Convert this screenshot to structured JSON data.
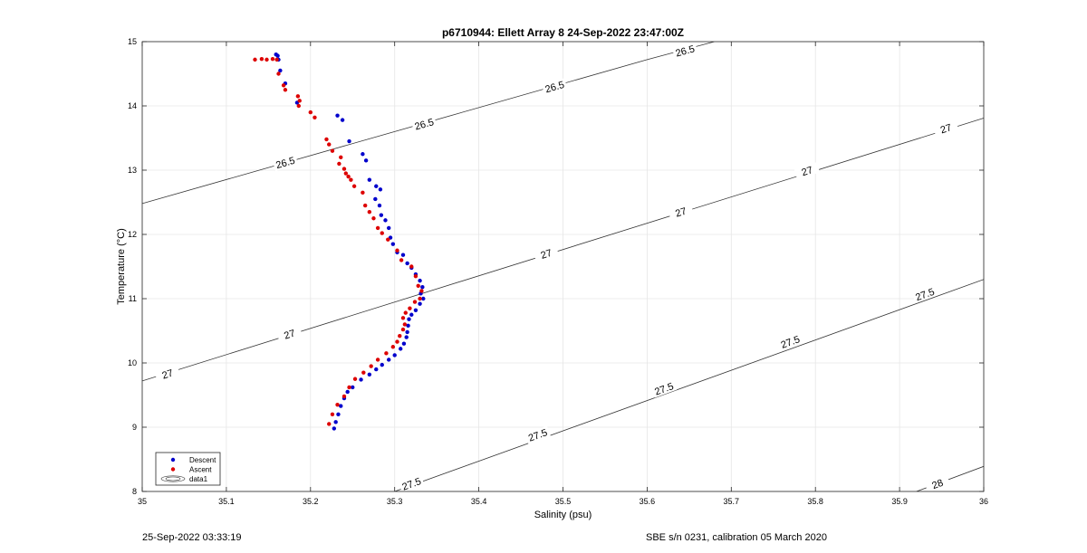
{
  "footer": {
    "left": "25-Sep-2022 03:33:19",
    "right": "SBE s/n 0231, calibration 05 March 2020"
  },
  "chart_data": {
    "type": "scatter",
    "title": "p6710944: Ellett Array 8 24-Sep-2022 23:47:00Z",
    "xlabel": "Salinity (psu)",
    "ylabel": "Temperature (°C)",
    "xlim": [
      35,
      36
    ],
    "ylim": [
      8,
      15
    ],
    "xticks": [
      "35",
      "35.1",
      "35.2",
      "35.3",
      "35.4",
      "35.5",
      "35.6",
      "35.7",
      "35.8",
      "35.9",
      "36"
    ],
    "yticks": [
      "8",
      "9",
      "10",
      "11",
      "12",
      "13",
      "14",
      "15"
    ],
    "grid": true,
    "legend": {
      "placement": "bottom-left",
      "entries": [
        "Descent",
        "Ascent",
        "data1"
      ]
    },
    "series": [
      {
        "name": "Descent",
        "color": "#0000cc",
        "points": [
          [
            35.159,
            14.8
          ],
          [
            35.161,
            14.78
          ],
          [
            35.162,
            14.72
          ],
          [
            35.164,
            14.55
          ],
          [
            35.17,
            14.35
          ],
          [
            35.184,
            14.05
          ],
          [
            35.232,
            13.85
          ],
          [
            35.238,
            13.78
          ],
          [
            35.246,
            13.45
          ],
          [
            35.262,
            13.25
          ],
          [
            35.266,
            13.15
          ],
          [
            35.27,
            12.85
          ],
          [
            35.278,
            12.75
          ],
          [
            35.283,
            12.7
          ],
          [
            35.277,
            12.55
          ],
          [
            35.282,
            12.45
          ],
          [
            35.284,
            12.3
          ],
          [
            35.289,
            12.22
          ],
          [
            35.293,
            12.1
          ],
          [
            35.295,
            11.95
          ],
          [
            35.298,
            11.85
          ],
          [
            35.303,
            11.72
          ],
          [
            35.31,
            11.68
          ],
          [
            35.315,
            11.55
          ],
          [
            35.32,
            11.48
          ],
          [
            35.325,
            11.38
          ],
          [
            35.33,
            11.28
          ],
          [
            35.333,
            11.18
          ],
          [
            35.331,
            11.08
          ],
          [
            35.334,
            11.0
          ],
          [
            35.33,
            10.92
          ],
          [
            35.325,
            10.82
          ],
          [
            35.32,
            10.75
          ],
          [
            35.317,
            10.68
          ],
          [
            35.316,
            10.58
          ],
          [
            35.315,
            10.48
          ],
          [
            35.314,
            10.4
          ],
          [
            35.311,
            10.3
          ],
          [
            35.307,
            10.22
          ],
          [
            35.3,
            10.12
          ],
          [
            35.293,
            10.05
          ],
          [
            35.285,
            9.97
          ],
          [
            35.278,
            9.9
          ],
          [
            35.27,
            9.82
          ],
          [
            35.26,
            9.74
          ],
          [
            35.25,
            9.62
          ],
          [
            35.244,
            9.55
          ],
          [
            35.24,
            9.45
          ],
          [
            35.236,
            9.33
          ],
          [
            35.233,
            9.2
          ],
          [
            35.23,
            9.08
          ],
          [
            35.228,
            8.98
          ]
        ]
      },
      {
        "name": "Ascent",
        "color": "#dd0000",
        "points": [
          [
            35.134,
            14.72
          ],
          [
            35.142,
            14.73
          ],
          [
            35.148,
            14.72
          ],
          [
            35.155,
            14.73
          ],
          [
            35.16,
            14.72
          ],
          [
            35.162,
            14.5
          ],
          [
            35.168,
            14.32
          ],
          [
            35.17,
            14.25
          ],
          [
            35.185,
            14.15
          ],
          [
            35.187,
            14.08
          ],
          [
            35.186,
            14.0
          ],
          [
            35.2,
            13.9
          ],
          [
            35.205,
            13.82
          ],
          [
            35.219,
            13.48
          ],
          [
            35.222,
            13.4
          ],
          [
            35.226,
            13.3
          ],
          [
            35.236,
            13.2
          ],
          [
            35.234,
            13.1
          ],
          [
            35.24,
            13.02
          ],
          [
            35.242,
            12.95
          ],
          [
            35.245,
            12.9
          ],
          [
            35.248,
            12.85
          ],
          [
            35.252,
            12.75
          ],
          [
            35.262,
            12.65
          ],
          [
            35.265,
            12.45
          ],
          [
            35.27,
            12.35
          ],
          [
            35.275,
            12.25
          ],
          [
            35.28,
            12.1
          ],
          [
            35.285,
            12.02
          ],
          [
            35.292,
            11.92
          ],
          [
            35.303,
            11.75
          ],
          [
            35.308,
            11.6
          ],
          [
            35.32,
            11.5
          ],
          [
            35.325,
            11.35
          ],
          [
            35.328,
            11.2
          ],
          [
            35.332,
            11.12
          ],
          [
            35.33,
            11.0
          ],
          [
            35.324,
            10.95
          ],
          [
            35.318,
            10.85
          ],
          [
            35.313,
            10.78
          ],
          [
            35.31,
            10.7
          ],
          [
            35.312,
            10.6
          ],
          [
            35.31,
            10.52
          ],
          [
            35.306,
            10.42
          ],
          [
            35.303,
            10.33
          ],
          [
            35.298,
            10.25
          ],
          [
            35.29,
            10.15
          ],
          [
            35.28,
            10.05
          ],
          [
            35.272,
            9.95
          ],
          [
            35.263,
            9.85
          ],
          [
            35.253,
            9.75
          ],
          [
            35.246,
            9.62
          ],
          [
            35.24,
            9.48
          ],
          [
            35.232,
            9.35
          ],
          [
            35.226,
            9.2
          ],
          [
            35.222,
            9.05
          ]
        ]
      }
    ],
    "isopycnals": [
      {
        "label": "26.5",
        "points": [
          [
            35.0,
            12.48
          ],
          [
            35.6,
            14.72
          ],
          [
            35.68,
            15.0
          ]
        ],
        "labels_at": [
          [
            35.17,
            13.12
          ],
          [
            35.335,
            13.72
          ],
          [
            35.49,
            14.3
          ],
          [
            35.645,
            14.86
          ]
        ]
      },
      {
        "label": "27",
        "points": [
          [
            35.0,
            9.72
          ],
          [
            36.0,
            13.81
          ]
        ],
        "labels_at": [
          [
            35.03,
            9.83
          ],
          [
            35.175,
            10.45
          ],
          [
            35.48,
            11.7
          ],
          [
            35.64,
            12.35
          ],
          [
            35.79,
            12.99
          ],
          [
            35.955,
            13.65
          ]
        ]
      },
      {
        "label": "27.5",
        "points": [
          [
            35.3,
            8.0
          ],
          [
            36.0,
            11.3
          ]
        ],
        "labels_at": [
          [
            35.32,
            8.12
          ],
          [
            35.47,
            8.88
          ],
          [
            35.62,
            9.6
          ],
          [
            35.77,
            10.33
          ],
          [
            35.93,
            11.07
          ]
        ]
      },
      {
        "label": "28",
        "points": [
          [
            35.92,
            8.0
          ],
          [
            36.0,
            8.39
          ]
        ],
        "labels_at": [
          [
            35.945,
            8.12
          ]
        ]
      }
    ]
  }
}
